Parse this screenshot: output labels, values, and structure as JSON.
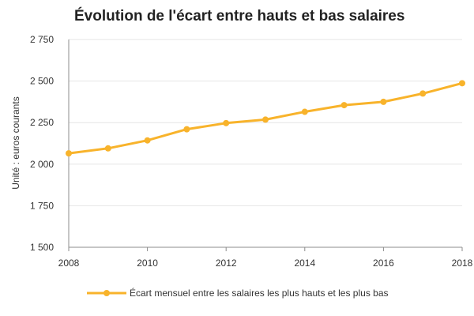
{
  "chart_data": {
    "type": "line",
    "title": "Évolution de l'écart entre hauts et bas salaires",
    "xlabel": "",
    "ylabel": "Unité : euros courants",
    "x": [
      2008,
      2009,
      2010,
      2011,
      2012,
      2013,
      2014,
      2015,
      2016,
      2017,
      2018
    ],
    "xticks": [
      2008,
      2010,
      2012,
      2014,
      2016,
      2018
    ],
    "xtick_labels": [
      "2008",
      "2010",
      "2012",
      "2014",
      "2016",
      "2018"
    ],
    "yticks": [
      1500,
      1750,
      2000,
      2250,
      2500,
      2750
    ],
    "ytick_labels": [
      "1 500",
      "1 750",
      "2 000",
      "2 250",
      "2 500",
      "2 750"
    ],
    "xlim": [
      2008,
      2018
    ],
    "ylim": [
      1500,
      2750
    ],
    "grid": true,
    "legend_position": "bottom",
    "series": [
      {
        "name": "Écart mensuel entre les salaires les plus hauts et les plus bas",
        "color": "#f8b32b",
        "values": [
          2065,
          2095,
          2143,
          2210,
          2247,
          2268,
          2315,
          2355,
          2375,
          2425,
          2487
        ]
      }
    ]
  }
}
